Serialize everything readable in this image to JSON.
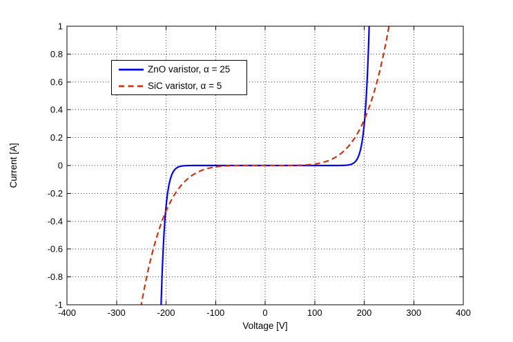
{
  "chart_data": {
    "type": "line",
    "title": "",
    "xlabel": "Voltage [V]",
    "ylabel": "Current [A]",
    "xlim": [
      -400,
      400
    ],
    "ylim": [
      -1,
      1
    ],
    "xticks": [
      -400,
      -300,
      -200,
      -100,
      0,
      100,
      200,
      300,
      400
    ],
    "xtick_labels": [
      "-400",
      "-300",
      "-200",
      "-100",
      "0",
      "100",
      "200",
      "300",
      "400"
    ],
    "yticks": [
      -1,
      -0.8,
      -0.6,
      -0.4,
      -0.2,
      0,
      0.2,
      0.4,
      0.6,
      0.8,
      1
    ],
    "ytick_labels": [
      "-1",
      "-0.8",
      "-0.6",
      "-0.4",
      "-0.2",
      "0",
      "0.2",
      "0.4",
      "0.6",
      "0.8",
      "1"
    ],
    "grid": "dotted",
    "grid_color": "#333333",
    "axis_color": "#000000",
    "background": "#ffffff",
    "legend": {
      "position": "upper-left",
      "border": true,
      "labels": [
        "ZnO varistor, α = 25",
        "SiC varistor, α = 5"
      ]
    },
    "series": [
      {
        "name": "ZnO varistor, α = 25",
        "color": "#0000ee",
        "line_style": "solid",
        "line_width": 2.2,
        "alpha": 25,
        "clamp_voltage": 210,
        "model": "I = sign(V)*(|V|/210)^25",
        "points": [
          [
            -210,
            -1
          ],
          [
            -205,
            -0.547
          ],
          [
            -200,
            -0.295
          ],
          [
            -195,
            -0.157
          ],
          [
            -190,
            -0.082
          ],
          [
            -180,
            -0.021
          ],
          [
            -170,
            -0.005
          ],
          [
            -160,
            -0.001
          ],
          [
            -150,
            0
          ],
          [
            0,
            0
          ],
          [
            150,
            0
          ],
          [
            160,
            0.001
          ],
          [
            170,
            0.005
          ],
          [
            180,
            0.021
          ],
          [
            190,
            0.082
          ],
          [
            195,
            0.157
          ],
          [
            200,
            0.295
          ],
          [
            205,
            0.547
          ],
          [
            210,
            1
          ]
        ]
      },
      {
        "name": "SiC varistor, α = 5",
        "color": "#cc3311",
        "line_style": "dashed",
        "line_width": 2.2,
        "alpha": 5,
        "clamp_voltage": 250,
        "model": "I = sign(V)*(|V|/250)^5",
        "points": [
          [
            -250,
            -1
          ],
          [
            -240,
            -0.815
          ],
          [
            -230,
            -0.659
          ],
          [
            -220,
            -0.528
          ],
          [
            -210,
            -0.418
          ],
          [
            -200,
            -0.328
          ],
          [
            -190,
            -0.254
          ],
          [
            -180,
            -0.193
          ],
          [
            -170,
            -0.145
          ],
          [
            -160,
            -0.107
          ],
          [
            -150,
            -0.078
          ],
          [
            -140,
            -0.055
          ],
          [
            -130,
            -0.038
          ],
          [
            -120,
            -0.025
          ],
          [
            -110,
            -0.016
          ],
          [
            -100,
            -0.01
          ],
          [
            -80,
            -0.003
          ],
          [
            -60,
            -0.001
          ],
          [
            -50,
            0
          ],
          [
            0,
            0
          ],
          [
            50,
            0
          ],
          [
            60,
            0.001
          ],
          [
            80,
            0.003
          ],
          [
            100,
            0.01
          ],
          [
            110,
            0.016
          ],
          [
            120,
            0.025
          ],
          [
            130,
            0.038
          ],
          [
            140,
            0.055
          ],
          [
            150,
            0.078
          ],
          [
            160,
            0.107
          ],
          [
            170,
            0.145
          ],
          [
            180,
            0.193
          ],
          [
            190,
            0.254
          ],
          [
            200,
            0.328
          ],
          [
            210,
            0.418
          ],
          [
            220,
            0.528
          ],
          [
            230,
            0.659
          ],
          [
            240,
            0.815
          ],
          [
            250,
            1
          ]
        ]
      }
    ]
  }
}
